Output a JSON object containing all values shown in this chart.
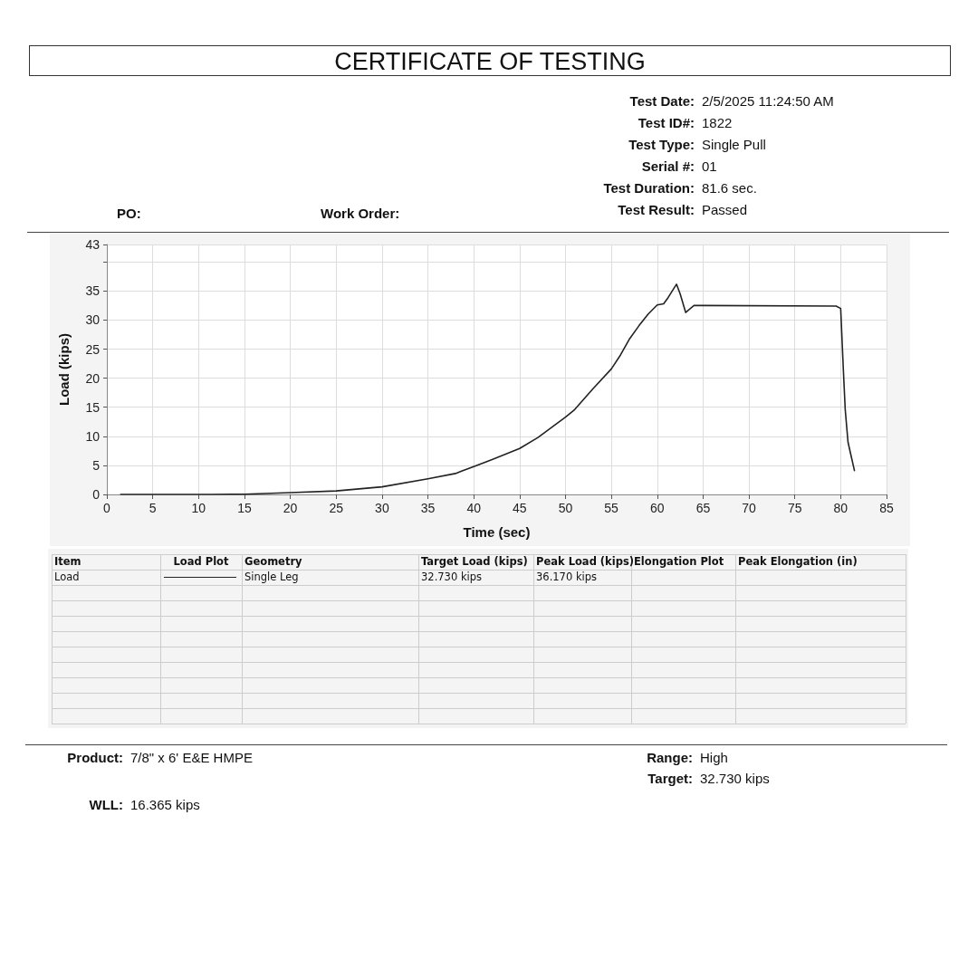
{
  "chart_data": {
    "type": "line",
    "title": "CERTIFICATE OF TESTING",
    "xlabel": "Time (sec)",
    "ylabel": "Load (kips)",
    "xlim": [
      0,
      85
    ],
    "xticks": [
      0,
      5,
      10,
      15,
      20,
      25,
      30,
      35,
      40,
      45,
      50,
      55,
      60,
      65,
      70,
      75,
      80,
      85
    ],
    "ylim": [
      0,
      43
    ],
    "yticks": [
      0,
      5,
      10,
      15,
      20,
      25,
      30,
      35,
      {
        "value": 40,
        "label": null
      },
      43
    ],
    "grid": true,
    "marker": "none",
    "line_style": "solid",
    "series": [
      {
        "name": "Load",
        "color": "#222222",
        "x": [
          1.5,
          11.3,
          15,
          20,
          25,
          30,
          35,
          38,
          40,
          42,
          45,
          47,
          50,
          51,
          53,
          55,
          56,
          57,
          58,
          59,
          60,
          60.7,
          61.2,
          62.1,
          62.5,
          63.1,
          64,
          65,
          79.5,
          80,
          80.3,
          80.5,
          80.8,
          81.2,
          81.5
        ],
        "values": [
          0,
          0,
          0.05,
          0.3,
          0.6,
          1.3,
          2.7,
          3.6,
          4.8,
          6,
          7.9,
          9.8,
          13.3,
          14.6,
          18.2,
          21.6,
          24,
          26.8,
          29,
          31,
          32.6,
          32.8,
          33.9,
          36.17,
          34.5,
          31.3,
          32.5,
          32.5,
          32.4,
          32.0,
          21.2,
          14.5,
          9,
          6.2,
          4.1
        ]
      }
    ],
    "annotations": [
      "Test Date: 2/5/2025 11:24:50 AM",
      "Test ID#: 1822",
      "Test Type: Single Pull",
      "Serial #: 01",
      "Test Duration: 81.6 sec.",
      "Test Result: Passed",
      "PO:",
      "Work Order:",
      "Item",
      "Load Plot",
      "Geometry",
      "Target Load (kips)",
      "Peak Load (kips)",
      "Elongation Plot",
      "Peak Elongation (in)",
      "Single Leg",
      "32.730 kips",
      "36.170 kips",
      "Product: 7/8\" x 6' E&E HMPE",
      "Range: High",
      "Target: 32.730 kips",
      "WLL: 16.365 kips"
    ]
  }
}
